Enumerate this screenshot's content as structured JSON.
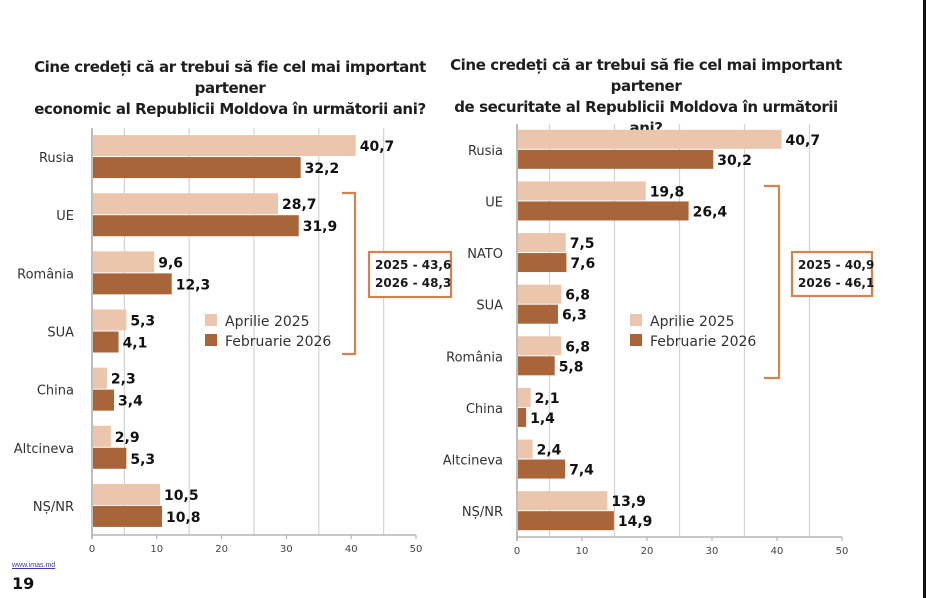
{
  "page": {
    "footer_link": "www.imas.md",
    "page_number": "19"
  },
  "colors": {
    "series_2025": "#EBC6AD",
    "series_2026": "#A8653A",
    "annotation": "#D3834F",
    "grid": "#d4d4d4"
  },
  "chart_data": [
    {
      "type": "bar",
      "orientation": "horizontal",
      "title": "Cine credeți că ar trebui să fie cel mai important partener economic al Republicii Moldova în următorii ani?",
      "title_lines": [
        "Cine credeți că ar trebui să fie cel mai important partener",
        "economic al Republicii Moldova în următorii ani?"
      ],
      "categories": [
        "Rusia",
        "UE",
        "România",
        "SUA",
        "China",
        "Altcineva",
        "NȘ/NR"
      ],
      "series": [
        {
          "name": "Aprilie 2025",
          "values": [
            40.7,
            28.7,
            9.6,
            5.3,
            2.3,
            2.9,
            10.5
          ],
          "labels": [
            "40,7",
            "28,7",
            "9,6",
            "5,3",
            "2,3",
            "2,9",
            "10,5"
          ]
        },
        {
          "name": "Februarie 2026",
          "values": [
            32.2,
            31.9,
            12.3,
            4.1,
            3.4,
            5.3,
            10.8
          ],
          "labels": [
            "32,2",
            "31,9",
            "12,3",
            "4,1",
            "3,4",
            "5,3",
            "10,8"
          ]
        }
      ],
      "xlim": [
        0,
        50
      ],
      "xticks": [
        "0",
        "10",
        "20",
        "30",
        "40",
        "50"
      ],
      "grid": true,
      "legend": "center-right",
      "annotation": {
        "bracket_categories": [
          "UE",
          "România",
          "SUA"
        ],
        "lines": [
          "2025 - 43,6",
          "2026 - 48,3"
        ]
      }
    },
    {
      "type": "bar",
      "orientation": "horizontal",
      "title": "Cine credeți că ar trebui să fie cel mai important partener de securitate al Republicii Moldova în următorii ani?",
      "title_lines": [
        "Cine credeți că ar trebui să fie cel mai important partener",
        "de securitate al Republicii Moldova în următorii ani?"
      ],
      "categories": [
        "Rusia",
        "UE",
        "NATO",
        "SUA",
        "România",
        "China",
        "Altcineva",
        "NȘ/NR"
      ],
      "series": [
        {
          "name": "Aprilie 2025",
          "values": [
            40.7,
            19.8,
            7.5,
            6.8,
            6.8,
            2.1,
            2.4,
            13.9
          ],
          "labels": [
            "40,7",
            "19,8",
            "7,5",
            "6,8",
            "6,8",
            "2,1",
            "2,4",
            "13,9"
          ]
        },
        {
          "name": "Februarie 2026",
          "values": [
            30.2,
            26.4,
            7.6,
            6.3,
            5.8,
            1.4,
            7.4,
            14.9
          ],
          "labels": [
            "30,2",
            "26,4",
            "7,6",
            "6,3",
            "5,8",
            "1,4",
            "7,4",
            "14,9"
          ]
        }
      ],
      "xlim": [
        0,
        50
      ],
      "xticks": [
        "0",
        "10",
        "20",
        "30",
        "40",
        "50"
      ],
      "grid": true,
      "legend": "center-right",
      "annotation": {
        "bracket_categories": [
          "UE",
          "NATO",
          "SUA",
          "România"
        ],
        "lines": [
          "2025 - 40,9",
          "2026 - 46,1"
        ]
      }
    }
  ]
}
